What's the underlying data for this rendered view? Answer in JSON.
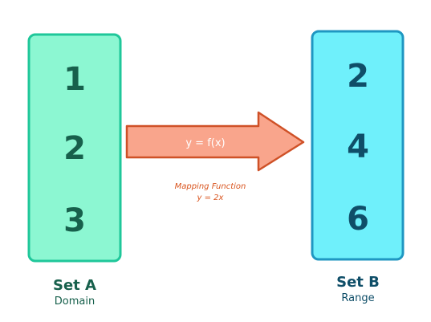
{
  "set_a": {
    "elements": [
      "1",
      "2",
      "3"
    ],
    "title": "Set A",
    "subtitle": "Domain"
  },
  "set_b": {
    "elements": [
      "2",
      "4",
      "6"
    ],
    "title": "Set B",
    "subtitle": "Range"
  },
  "arrow": {
    "label": "y = f(x)"
  },
  "mapping": {
    "title": "Mapping Function",
    "formula": "y = 2x"
  },
  "colors": {
    "set_a_fill": "#8cf7d2",
    "set_a_border": "#1fc79a",
    "set_a_text": "#17604c",
    "set_b_fill": "#6ff0fb",
    "set_b_border": "#1f97c2",
    "set_b_text": "#0f4e68",
    "arrow_fill": "#f9a58c",
    "arrow_border": "#cf5127",
    "mapping_text": "#d9541e"
  }
}
